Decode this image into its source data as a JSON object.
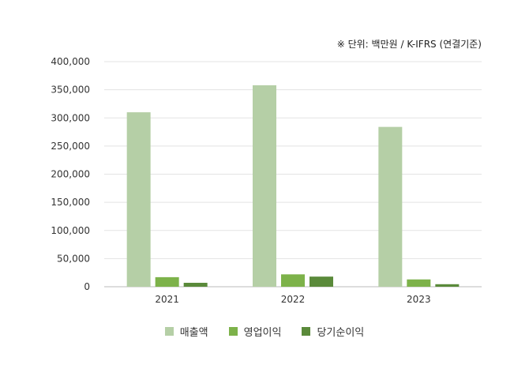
{
  "unit_note": "※ 단위: 백만원 / K-IFRS (연결기준)",
  "chart_data": {
    "type": "bar",
    "categories": [
      "2021",
      "2022",
      "2023"
    ],
    "series": [
      {
        "name": "매출액",
        "color": "#b5cfa6",
        "values": [
          310000,
          358000,
          284000
        ]
      },
      {
        "name": "영업이익",
        "color": "#7db24a",
        "values": [
          17000,
          22000,
          13000
        ]
      },
      {
        "name": "당기순이익",
        "color": "#5a8a3a",
        "values": [
          7000,
          18000,
          4500
        ]
      }
    ],
    "yticks": [
      "0",
      "50,000",
      "100,000",
      "150,000",
      "200,000",
      "250,000",
      "300,000",
      "350,000",
      "400,000"
    ],
    "ylim": [
      0,
      400000
    ],
    "grid": true,
    "legend_position": "bottom"
  }
}
